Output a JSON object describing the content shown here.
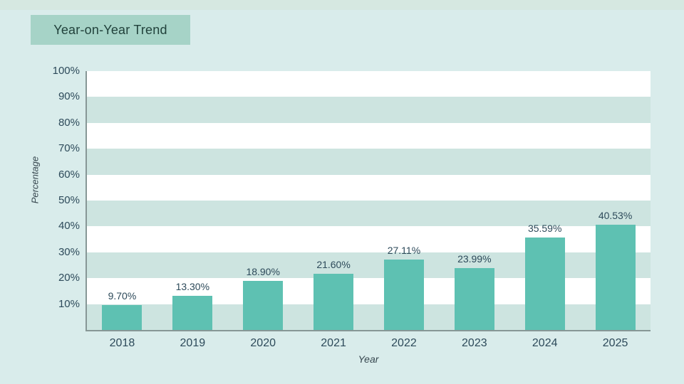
{
  "page": {
    "background_color": "#d9eceb",
    "top_strip_color": "#d6e8e1"
  },
  "header": {
    "title": "Year-on-Year Trend",
    "box_color": "#a6d3c7",
    "text_color": "#21413b"
  },
  "chart_data": {
    "type": "bar",
    "title": "Year-on-Year Trend",
    "categories": [
      "2018",
      "2019",
      "2020",
      "2021",
      "2022",
      "2023",
      "2024",
      "2025"
    ],
    "values": [
      9.7,
      13.3,
      18.9,
      21.6,
      27.11,
      23.99,
      35.59,
      40.53
    ],
    "value_labels": [
      "9.70%",
      "13.30%",
      "18.90%",
      "21.60%",
      "27.11%",
      "23.99%",
      "35.59%",
      "40.53%"
    ],
    "xlabel": "Year",
    "ylabel": "Percentage",
    "ylim": [
      0,
      100
    ],
    "ytick_step": 10,
    "ytick_labels": [
      "100%",
      "90%",
      "80%",
      "70%",
      "60%",
      "50%",
      "40%",
      "30%",
      "20%",
      "10%"
    ],
    "legend": "none",
    "grid": "alternating horizontal bands, white and pale teal, one band per 10%",
    "colors": {
      "bar": "#5ec1b2",
      "band_white": "#ffffff",
      "band_teal": "#cde4e0",
      "axis_line": "#879796",
      "tick_text": "#2d4a5a",
      "axis_title_text": "#37474f"
    }
  }
}
